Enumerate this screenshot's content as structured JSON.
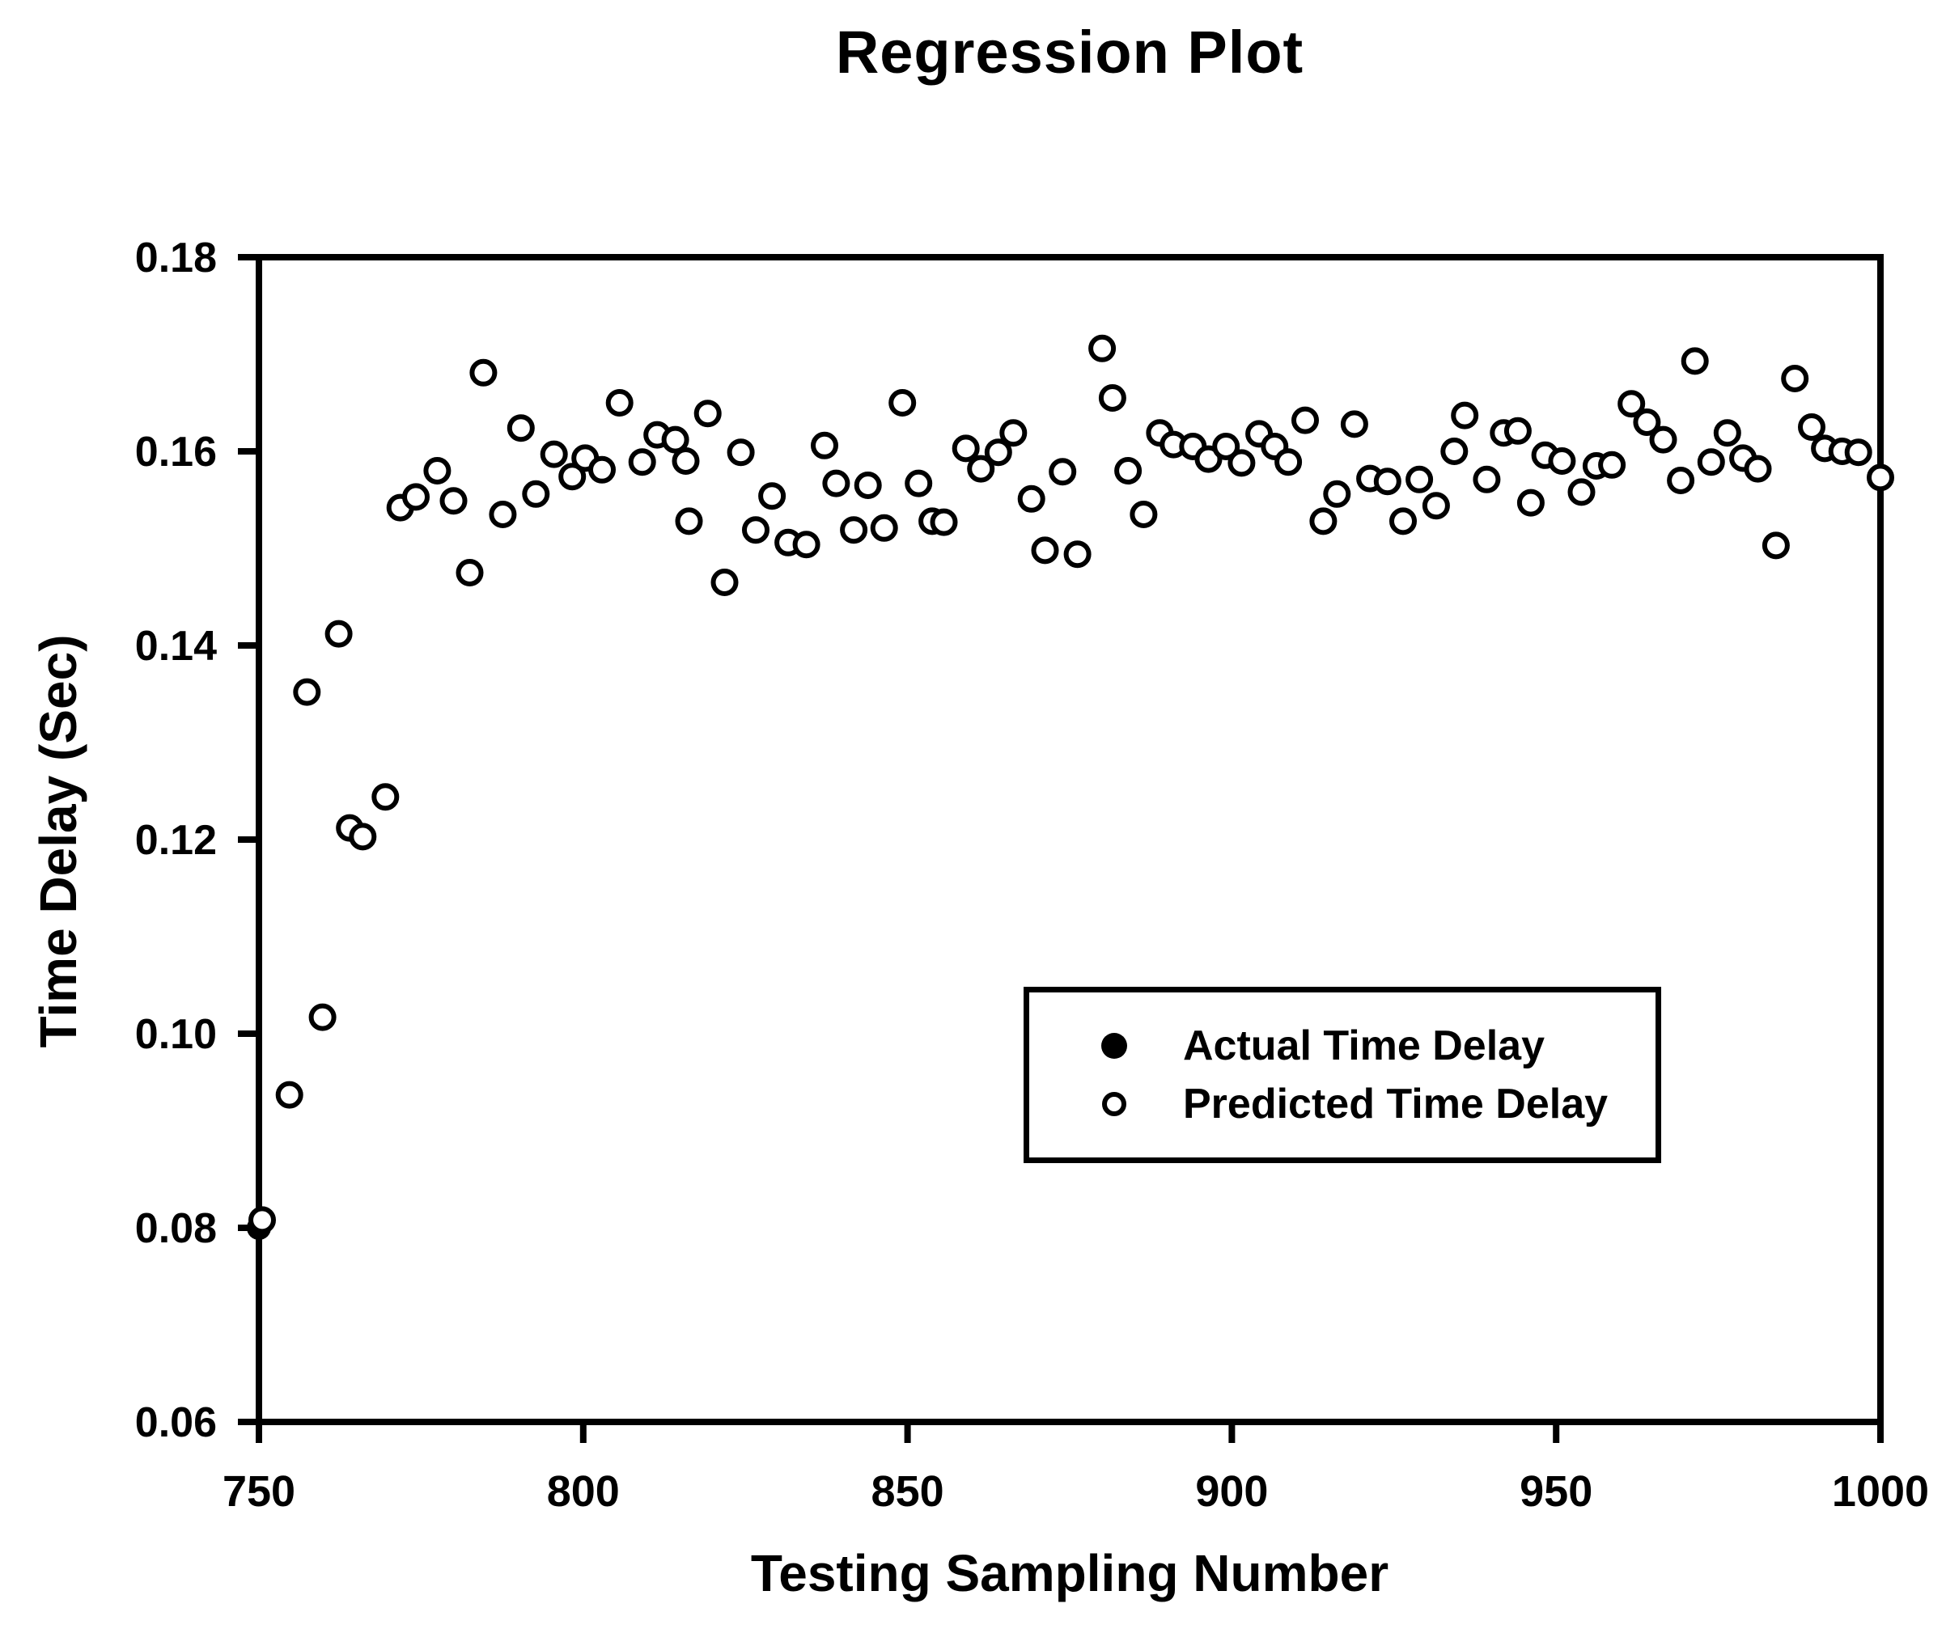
{
  "chart_data": {
    "type": "scatter",
    "title": "Regression Plot",
    "xlabel": "Testing Sampling Number",
    "ylabel": "Time Delay (Sec)",
    "xlim": [
      750,
      1000
    ],
    "ylim": [
      0.06,
      0.18
    ],
    "grid": false,
    "legend_position": "inside-center-right",
    "axis_color": "#000000",
    "background_color": "#ffffff",
    "xticks": [
      {
        "v": 750,
        "label": "750"
      },
      {
        "v": 800,
        "label": "800"
      },
      {
        "v": 850,
        "label": "850"
      },
      {
        "v": 900,
        "label": "900"
      },
      {
        "v": 950,
        "label": "950"
      },
      {
        "v": 1000,
        "label": "1000"
      }
    ],
    "yticks": [
      {
        "v": 0.06,
        "label": "0.06"
      },
      {
        "v": 0.08,
        "label": "0.08"
      },
      {
        "v": 0.1,
        "label": "0.10"
      },
      {
        "v": 0.12,
        "label": "0.12"
      },
      {
        "v": 0.14,
        "label": "0.14"
      },
      {
        "v": 0.16,
        "label": "0.16"
      },
      {
        "v": 0.18,
        "label": "0.18"
      }
    ],
    "series": [
      {
        "name": "Actual Time Delay",
        "marker": "filled-circle",
        "color": "#000000",
        "points": [
          [
            750.0,
            0.08
          ]
        ]
      },
      {
        "name": "Predicted Time Delay",
        "marker": "open-circle",
        "color": "#000000",
        "points": [
          [
            750.5,
            0.0808
          ],
          [
            754.7,
            0.0937
          ],
          [
            757.4,
            0.1352
          ],
          [
            759.8,
            0.1017
          ],
          [
            762.3,
            0.1412
          ],
          [
            764.0,
            0.1212
          ],
          [
            766.0,
            0.1203
          ],
          [
            769.5,
            0.1244
          ],
          [
            771.8,
            0.1542
          ],
          [
            774.2,
            0.1553
          ],
          [
            777.5,
            0.158
          ],
          [
            780.0,
            0.1549
          ],
          [
            782.5,
            0.1475
          ],
          [
            784.6,
            0.1681
          ],
          [
            787.6,
            0.1535
          ],
          [
            790.4,
            0.1624
          ],
          [
            792.7,
            0.1556
          ],
          [
            795.5,
            0.1597
          ],
          [
            798.3,
            0.1574
          ],
          [
            800.3,
            0.1593
          ],
          [
            802.9,
            0.1581
          ],
          [
            805.6,
            0.165
          ],
          [
            809.1,
            0.1589
          ],
          [
            811.4,
            0.1617
          ],
          [
            814.2,
            0.1612
          ],
          [
            815.8,
            0.159
          ],
          [
            816.3,
            0.1528
          ],
          [
            819.2,
            0.1639
          ],
          [
            821.8,
            0.1465
          ],
          [
            824.3,
            0.1599
          ],
          [
            826.6,
            0.1519
          ],
          [
            829.1,
            0.1554
          ],
          [
            831.6,
            0.1506
          ],
          [
            834.4,
            0.1504
          ],
          [
            837.2,
            0.1606
          ],
          [
            839.0,
            0.1567
          ],
          [
            841.7,
            0.1519
          ],
          [
            843.9,
            0.1565
          ],
          [
            846.4,
            0.1521
          ],
          [
            849.2,
            0.165
          ],
          [
            851.7,
            0.1567
          ],
          [
            853.8,
            0.1528
          ],
          [
            855.6,
            0.1527
          ],
          [
            859.0,
            0.1603
          ],
          [
            861.3,
            0.1582
          ],
          [
            864.0,
            0.1599
          ],
          [
            866.3,
            0.1619
          ],
          [
            869.1,
            0.1551
          ],
          [
            871.2,
            0.1498
          ],
          [
            873.9,
            0.1579
          ],
          [
            876.2,
            0.1494
          ],
          [
            880.0,
            0.1706
          ],
          [
            881.6,
            0.1655
          ],
          [
            884.0,
            0.158
          ],
          [
            886.4,
            0.1535
          ],
          [
            888.9,
            0.1619
          ],
          [
            891.0,
            0.1607
          ],
          [
            894.0,
            0.1605
          ],
          [
            896.4,
            0.1592
          ],
          [
            899.1,
            0.1605
          ],
          [
            901.5,
            0.1588
          ],
          [
            904.2,
            0.1618
          ],
          [
            906.6,
            0.1605
          ],
          [
            908.7,
            0.1589
          ],
          [
            911.3,
            0.1632
          ],
          [
            914.1,
            0.1528
          ],
          [
            916.2,
            0.1556
          ],
          [
            918.9,
            0.1628
          ],
          [
            921.3,
            0.1572
          ],
          [
            924.0,
            0.1569
          ],
          [
            926.4,
            0.1528
          ],
          [
            928.9,
            0.1571
          ],
          [
            931.5,
            0.1544
          ],
          [
            934.3,
            0.16
          ],
          [
            935.9,
            0.1637
          ],
          [
            939.3,
            0.1571
          ],
          [
            941.9,
            0.1619
          ],
          [
            944.1,
            0.1621
          ],
          [
            946.1,
            0.1547
          ],
          [
            948.3,
            0.1596
          ],
          [
            950.9,
            0.159
          ],
          [
            953.9,
            0.1558
          ],
          [
            956.2,
            0.1585
          ],
          [
            958.6,
            0.1586
          ],
          [
            961.6,
            0.1649
          ],
          [
            964.0,
            0.163
          ],
          [
            966.5,
            0.1612
          ],
          [
            969.2,
            0.157
          ],
          [
            971.4,
            0.1693
          ],
          [
            973.9,
            0.1589
          ],
          [
            976.4,
            0.1619
          ],
          [
            978.8,
            0.1593
          ],
          [
            981.1,
            0.1582
          ],
          [
            983.9,
            0.1503
          ],
          [
            986.8,
            0.1675
          ],
          [
            989.4,
            0.1625
          ],
          [
            991.4,
            0.1603
          ],
          [
            994.1,
            0.16
          ],
          [
            996.6,
            0.1599
          ],
          [
            1000.0,
            0.1573
          ]
        ]
      }
    ]
  }
}
